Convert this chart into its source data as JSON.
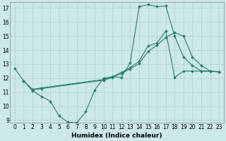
{
  "bg_color": "#cce8e8",
  "grid_color": "#b0d0d0",
  "line_color": "#2a7d6f",
  "xlabel": "Humidex (Indice chaleur)",
  "xlim": [
    -0.5,
    23.5
  ],
  "ylim": [
    8.8,
    17.4
  ],
  "yticks": [
    9,
    10,
    11,
    12,
    13,
    14,
    15,
    16,
    17
  ],
  "xticks": [
    0,
    1,
    2,
    3,
    4,
    5,
    6,
    7,
    8,
    9,
    10,
    11,
    12,
    13,
    14,
    15,
    16,
    17,
    18,
    19,
    20,
    21,
    22,
    23
  ],
  "line1_x": [
    0,
    1,
    2,
    3,
    4,
    5,
    6,
    7,
    8,
    9,
    10,
    11,
    12,
    13,
    14,
    15,
    16,
    17,
    18,
    19,
    20,
    21,
    22,
    23
  ],
  "line1_y": [
    12.7,
    11.8,
    11.1,
    10.7,
    10.35,
    9.3,
    8.85,
    8.82,
    9.6,
    11.15,
    12.0,
    12.1,
    12.05,
    13.1,
    17.1,
    17.25,
    17.1,
    17.15,
    15.0,
    13.5,
    12.9,
    12.5,
    12.48,
    12.45
  ],
  "line2_x": [
    1,
    2,
    3,
    10,
    11,
    12,
    13,
    14,
    15,
    16,
    17,
    18,
    19,
    20,
    21,
    22,
    23
  ],
  "line2_y": [
    11.8,
    11.15,
    11.25,
    11.85,
    12.05,
    12.35,
    12.65,
    13.05,
    13.9,
    14.35,
    14.9,
    15.25,
    15.0,
    13.5,
    12.9,
    12.5,
    12.45
  ],
  "line3_x": [
    1,
    2,
    3,
    10,
    11,
    12,
    13,
    14,
    15,
    16,
    17,
    18,
    19,
    20,
    21,
    22,
    23
  ],
  "line3_y": [
    11.8,
    11.2,
    11.3,
    11.9,
    12.1,
    12.4,
    12.75,
    13.2,
    14.3,
    14.5,
    15.35,
    12.05,
    12.5,
    12.5,
    12.5,
    12.5,
    12.45
  ]
}
